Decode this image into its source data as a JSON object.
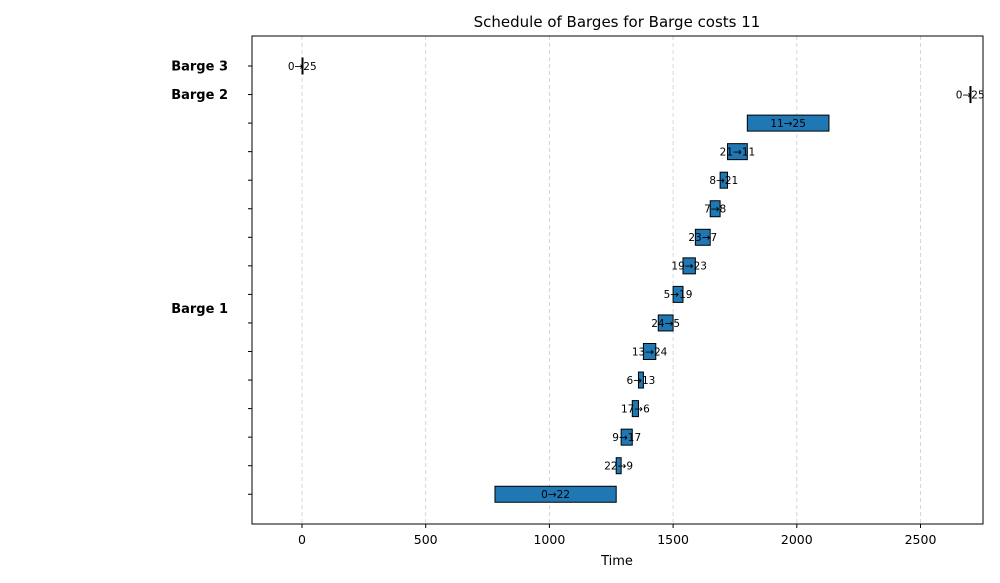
{
  "chart_data": {
    "type": "bar",
    "orientation": "horizontal-gantt",
    "title": "Schedule of Barges for Barge costs 11",
    "xlabel": "Time",
    "ylabel": "",
    "xlim": [
      -200,
      2750
    ],
    "xticks": [
      0,
      500,
      1000,
      1500,
      2000,
      2500
    ],
    "grid": "vertical dashed",
    "bar_color": "#1f77b4",
    "row_count": 16,
    "row_labels": [
      {
        "row": 0,
        "label": "Barge 3"
      },
      {
        "row": 1,
        "label": "Barge 2"
      },
      {
        "row": 8.5,
        "label": "Barge 1"
      }
    ],
    "segments": [
      {
        "row": 0,
        "start": 0,
        "end": 2,
        "label": "0→25"
      },
      {
        "row": 1,
        "start": 2700,
        "end": 2702,
        "label": "0→25"
      },
      {
        "row": 2,
        "start": 1800,
        "end": 2130,
        "label": "11→25"
      },
      {
        "row": 3,
        "start": 1720,
        "end": 1800,
        "label": "21→11"
      },
      {
        "row": 4,
        "start": 1690,
        "end": 1720,
        "label": "8→21"
      },
      {
        "row": 5,
        "start": 1650,
        "end": 1690,
        "label": "7→8"
      },
      {
        "row": 6,
        "start": 1590,
        "end": 1650,
        "label": "23→7"
      },
      {
        "row": 7,
        "start": 1540,
        "end": 1590,
        "label": "19→23"
      },
      {
        "row": 8,
        "start": 1500,
        "end": 1540,
        "label": "5→19"
      },
      {
        "row": 9,
        "start": 1440,
        "end": 1500,
        "label": "24→5"
      },
      {
        "row": 10,
        "start": 1380,
        "end": 1430,
        "label": "13→24"
      },
      {
        "row": 11,
        "start": 1360,
        "end": 1380,
        "label": "6→13"
      },
      {
        "row": 12,
        "start": 1335,
        "end": 1360,
        "label": "17→6"
      },
      {
        "row": 13,
        "start": 1290,
        "end": 1335,
        "label": "9→17"
      },
      {
        "row": 14,
        "start": 1270,
        "end": 1290,
        "label": "22→9"
      },
      {
        "row": 15,
        "start": 780,
        "end": 1270,
        "label": "0→22"
      }
    ]
  }
}
